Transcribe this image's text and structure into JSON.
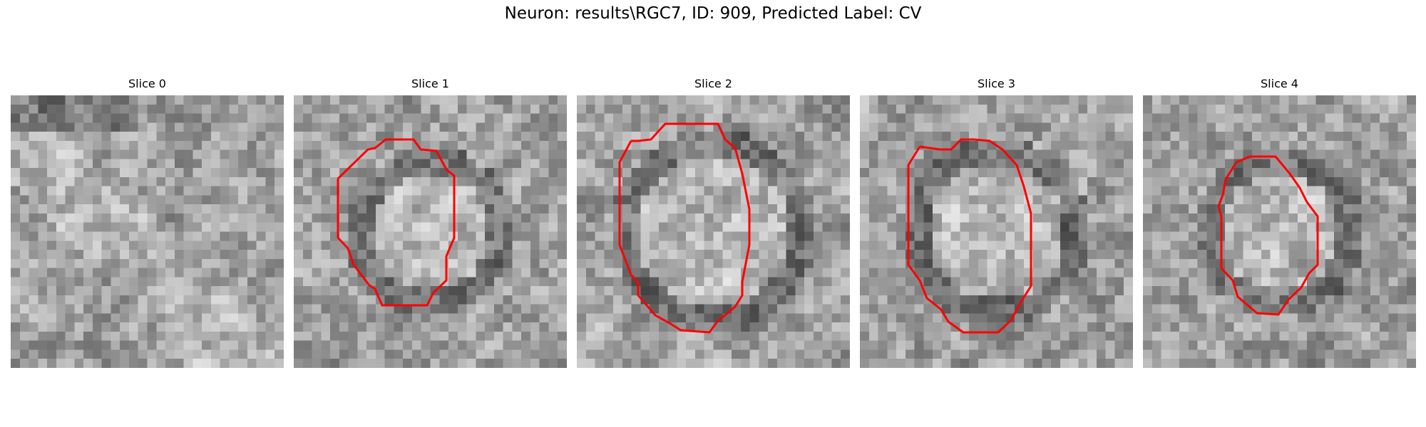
{
  "figure": {
    "title": "Neuron: results\\RGC7, ID: 909, Predicted Label: CV"
  },
  "colors": {
    "background": "#ffffff",
    "contour": "#ff0000",
    "colormap": "gray"
  },
  "panels": [
    {
      "title": "Slice 0",
      "has_contour": false
    },
    {
      "title": "Slice 1",
      "has_contour": true
    },
    {
      "title": "Slice 2",
      "has_contour": true
    },
    {
      "title": "Slice 3",
      "has_contour": true
    },
    {
      "title": "Slice 4",
      "has_contour": true
    }
  ]
}
